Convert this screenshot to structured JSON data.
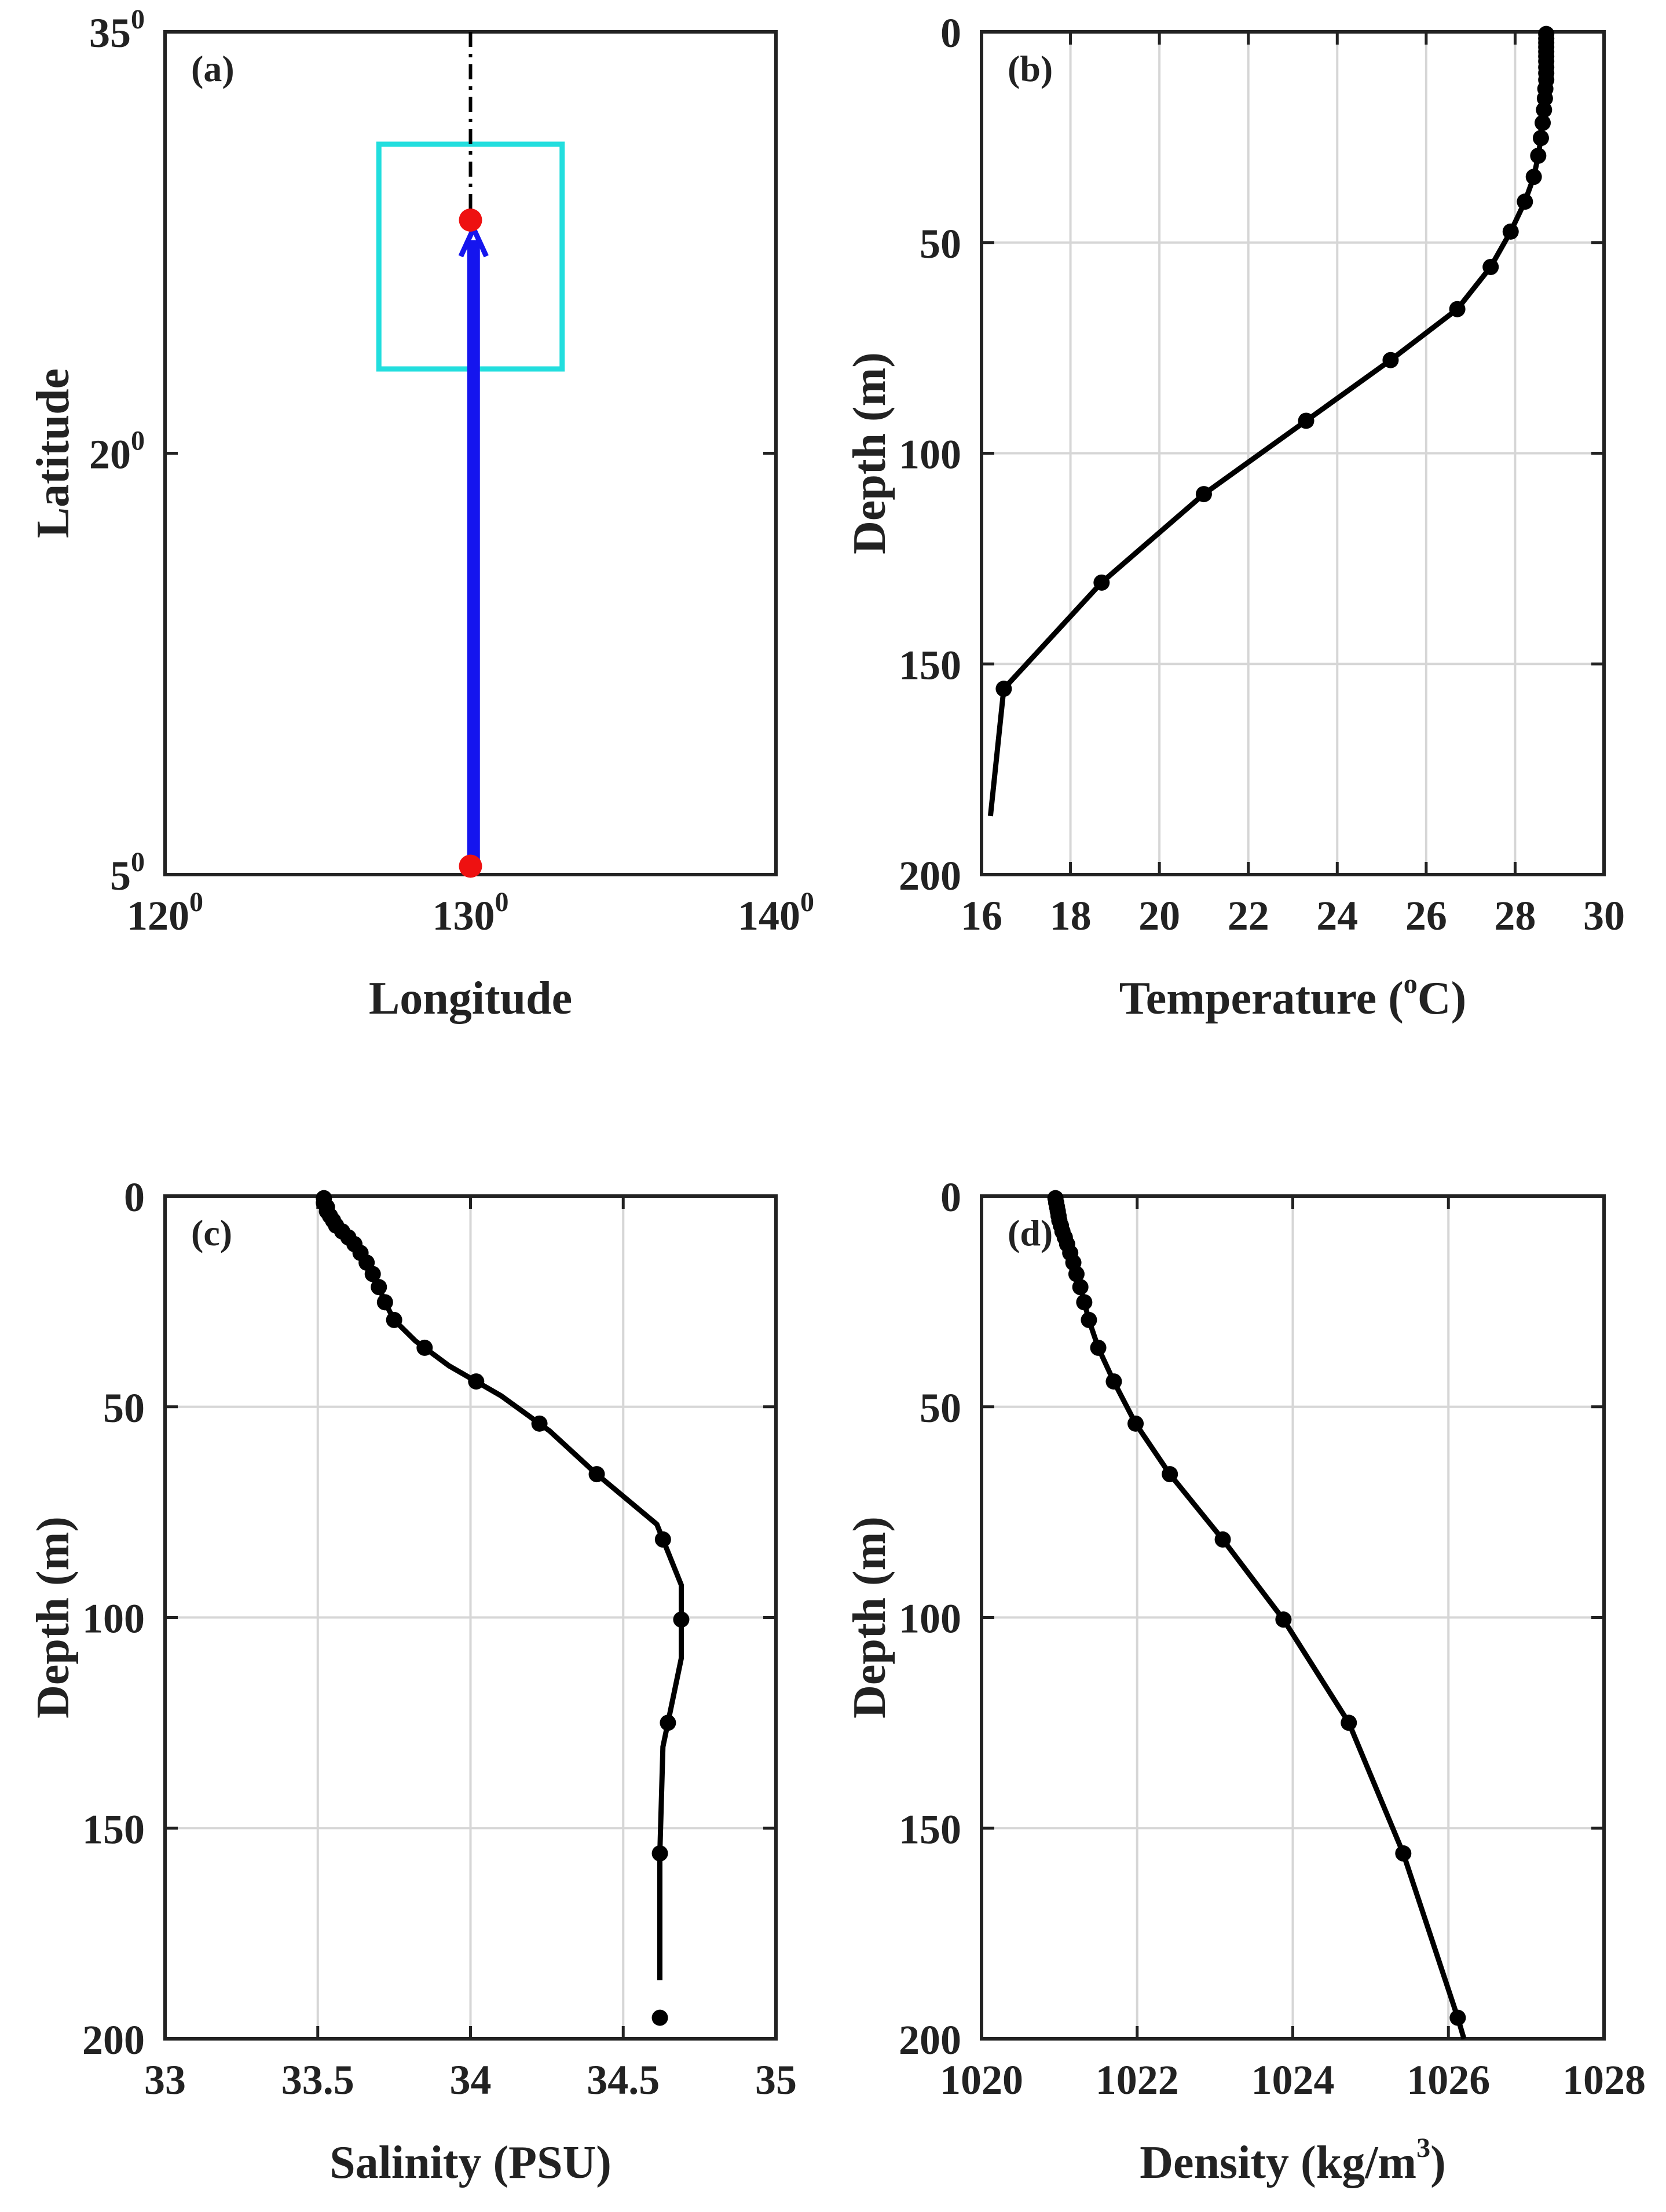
{
  "chart_data": [
    {
      "id": "a",
      "type": "line",
      "panel_label": "(a)",
      "xlabel": "Longitude",
      "ylabel": "Latitude",
      "xlim": [
        120,
        140
      ],
      "ylim": [
        5,
        35
      ],
      "xticks": [
        120,
        130,
        140
      ],
      "xtick_labels": [
        "120",
        "130",
        "140"
      ],
      "yticks": [
        5,
        20,
        35
      ],
      "ytick_labels": [
        "5",
        "20",
        "35"
      ],
      "tick_label_superscript": "0",
      "grid": false,
      "region_box": {
        "lon": [
          127,
          133
        ],
        "lat": [
          23,
          31
        ],
        "color": "#22dede"
      },
      "track_line": {
        "lon": 130,
        "lat": [
          28.3,
          35
        ],
        "style": "dash-dot",
        "color": "#000000"
      },
      "arrow": {
        "from": [
          130.1,
          5.3
        ],
        "to": [
          130.1,
          28.0
        ],
        "color": "#1515ee"
      },
      "points": [
        {
          "lon": 130,
          "lat": 28.3,
          "color": "#ee1111"
        },
        {
          "lon": 130,
          "lat": 5.3,
          "color": "#ee1111"
        }
      ]
    },
    {
      "id": "b",
      "type": "line",
      "panel_label": "(b)",
      "xlabel": "Temperature (",
      "xlabel_superscript": "o",
      "xlabel_suffix": "C)",
      "ylabel": "Depth (m)",
      "xlim": [
        16,
        30
      ],
      "ylim": [
        0,
        200
      ],
      "y_reversed": true,
      "xticks": [
        16,
        18,
        20,
        22,
        24,
        26,
        28,
        30
      ],
      "xtick_labels": [
        "16",
        "18",
        "20",
        "22",
        "24",
        "26",
        "28",
        "30"
      ],
      "yticks": [
        0,
        50,
        100,
        150,
        200
      ],
      "ytick_labels": [
        "0",
        "50",
        "100",
        "150",
        "200"
      ],
      "grid": true,
      "series": [
        {
          "name": "Temperature",
          "depth": [
            0.5,
            1.6,
            2.6,
            3.6,
            4.7,
            5.8,
            7.0,
            8.4,
            9.8,
            11.4,
            13.5,
            15.8,
            18.5,
            21.6,
            25.2,
            29.4,
            34.4,
            40.3,
            47.4,
            55.8,
            65.8,
            77.9,
            92.3,
            109.7,
            130.7,
            155.9,
            186.1
          ],
          "values": [
            28.7,
            28.7,
            28.7,
            28.7,
            28.7,
            28.7,
            28.7,
            28.7,
            28.7,
            28.7,
            28.68,
            28.67,
            28.65,
            28.62,
            28.58,
            28.52,
            28.42,
            28.22,
            27.9,
            27.45,
            26.7,
            25.2,
            23.3,
            21.0,
            18.7,
            16.5,
            16.2
          ],
          "markers_shown": [
            true,
            true,
            true,
            true,
            true,
            true,
            true,
            true,
            true,
            true,
            true,
            true,
            true,
            true,
            true,
            true,
            true,
            true,
            true,
            true,
            true,
            true,
            true,
            true,
            true,
            true,
            false
          ]
        }
      ]
    },
    {
      "id": "c",
      "type": "line",
      "panel_label": "(c)",
      "xlabel": "Salinity (PSU)",
      "ylabel": "Depth (m)",
      "xlim": [
        33,
        35
      ],
      "ylim": [
        0,
        200
      ],
      "y_reversed": true,
      "xticks": [
        33,
        33.5,
        34,
        34.5,
        35
      ],
      "xtick_labels": [
        "33",
        "33.5",
        "34",
        "34.5",
        "35"
      ],
      "yticks": [
        0,
        50,
        100,
        150,
        200
      ],
      "ytick_labels": [
        "0",
        "50",
        "100",
        "150",
        "200"
      ],
      "grid": true,
      "series": [
        {
          "name": "Salinity",
          "depth": [
            0.5,
            1.6,
            2.6,
            3.6,
            4.7,
            5.8,
            7.0,
            8.4,
            9.8,
            11.4,
            13.5,
            15.8,
            18.5,
            21.6,
            25.2,
            29.4,
            34.4,
            40.3,
            47.4,
            55.8,
            65.8,
            77.9,
            92.3,
            109.7,
            130.7,
            155.9,
            186.1
          ],
          "values": [
            33.52,
            33.52,
            33.53,
            33.53,
            33.54,
            33.55,
            33.56,
            33.58,
            33.6,
            33.62,
            33.64,
            33.66,
            33.68,
            33.7,
            33.72,
            33.75,
            33.82,
            33.93,
            34.1,
            34.26,
            34.41,
            34.61,
            34.69,
            34.69,
            34.63,
            34.62,
            34.62
          ],
          "depth_shown": [
            0.5,
            1.6,
            2.6,
            3.6,
            4.7,
            5.8,
            7.0,
            8.4,
            9.8,
            11.4,
            13.5,
            15.8,
            18.5,
            21.6,
            25.2,
            29.4,
            36.0,
            44.0,
            54.0,
            66.0,
            81.5,
            100.5,
            125.0,
            156.0,
            195.0
          ]
        }
      ]
    },
    {
      "id": "d",
      "type": "line",
      "panel_label": "(d)",
      "xlabel": "Density (kg/m",
      "xlabel_superscript": "3",
      "xlabel_suffix": ")",
      "ylabel": "Depth (m)",
      "xlim": [
        1020,
        1028
      ],
      "ylim": [
        0,
        200
      ],
      "y_reversed": true,
      "xticks": [
        1020,
        1022,
        1024,
        1026,
        1028
      ],
      "xtick_labels": [
        "1020",
        "1022",
        "1024",
        "1026",
        "1028"
      ],
      "yticks": [
        0,
        50,
        100,
        150,
        200
      ],
      "ytick_labels": [
        "0",
        "50",
        "100",
        "150",
        "200"
      ],
      "grid": true,
      "series": [
        {
          "name": "Density",
          "depth": [
            0.5,
            1.6,
            2.6,
            3.6,
            4.7,
            5.8,
            7.0,
            8.4,
            9.8,
            11.4,
            13.5,
            15.8,
            18.5,
            21.6,
            25.2,
            29.4,
            36.0,
            44.0,
            54.0,
            66.0,
            81.5,
            100.5,
            125.0,
            156.0,
            195.0,
            200.0
          ],
          "values": [
            1020.95,
            1020.96,
            1020.97,
            1020.98,
            1020.99,
            1021.0,
            1021.02,
            1021.04,
            1021.07,
            1021.1,
            1021.14,
            1021.18,
            1021.22,
            1021.27,
            1021.32,
            1021.38,
            1021.5,
            1021.7,
            1021.98,
            1022.42,
            1023.1,
            1023.88,
            1024.72,
            1025.42,
            1026.12,
            1026.2
          ],
          "markers_shown": [
            true,
            true,
            true,
            true,
            true,
            true,
            true,
            true,
            true,
            true,
            true,
            true,
            true,
            true,
            true,
            true,
            true,
            true,
            true,
            true,
            true,
            true,
            true,
            true,
            true,
            false
          ]
        }
      ]
    }
  ]
}
